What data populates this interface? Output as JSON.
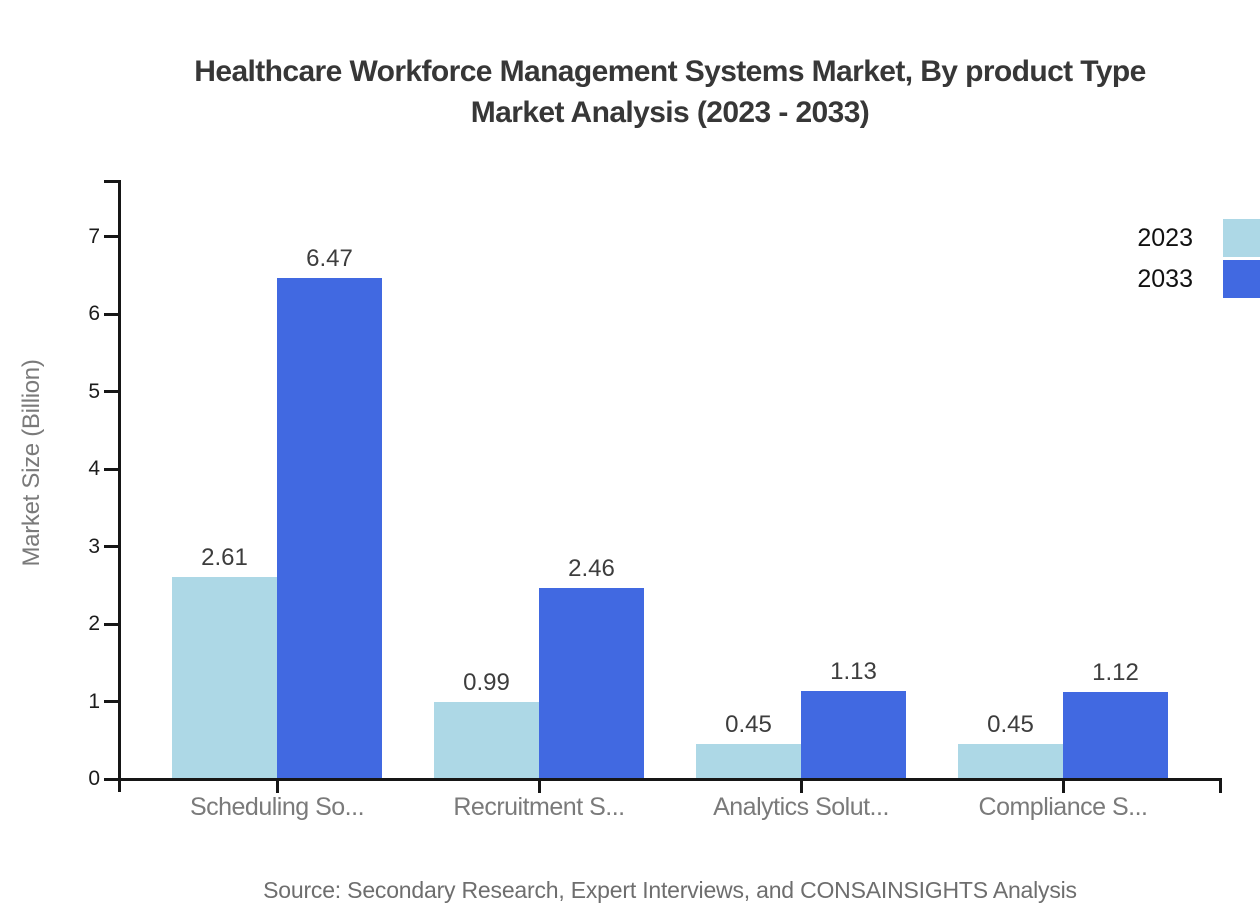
{
  "title": {
    "line1": "Healthcare Workforce Management Systems Market, By product Type",
    "line2": "Market Analysis (2023 - 2033)"
  },
  "source": "Source: Secondary Research, Expert Interviews, and CONSAINSIGHTS Analysis",
  "legend": {
    "position": "top-right",
    "items": [
      {
        "label": "2023",
        "color": "#ADD8E6"
      },
      {
        "label": "2033",
        "color": "#4169E1"
      }
    ]
  },
  "colors": {
    "bar_2023": "#ADD8E6",
    "bar_2033": "#4169E1",
    "axis": "#161616",
    "title_text": "#373737",
    "category_text": "#7a7a7a",
    "tick_label_text": "#1c1c1c",
    "value_label_text": "#3d3d3d",
    "source_text": "#6e6e6e",
    "background": "#ffffff"
  },
  "chart_data": {
    "type": "bar",
    "title": "Healthcare Workforce Management Systems Market, By product Type Market Analysis (2023 - 2033)",
    "categories": [
      "Scheduling So...",
      "Recruitment S...",
      "Analytics Solut...",
      "Compliance S..."
    ],
    "series": [
      {
        "name": "2023",
        "color": "#ADD8E6",
        "values": [
          2.61,
          0.99,
          0.45,
          0.45
        ]
      },
      {
        "name": "2033",
        "color": "#4169E1",
        "values": [
          6.47,
          2.46,
          1.13,
          1.12
        ]
      }
    ],
    "xlabel": "",
    "ylabel": "Market Size (Billion)",
    "yticks": [
      0,
      1,
      2,
      3,
      4,
      5,
      6,
      7
    ],
    "ylim": [
      0,
      7.75
    ],
    "grid": false,
    "value_labels": true,
    "value_label_format": "0.00",
    "legend_position": "top-right"
  }
}
